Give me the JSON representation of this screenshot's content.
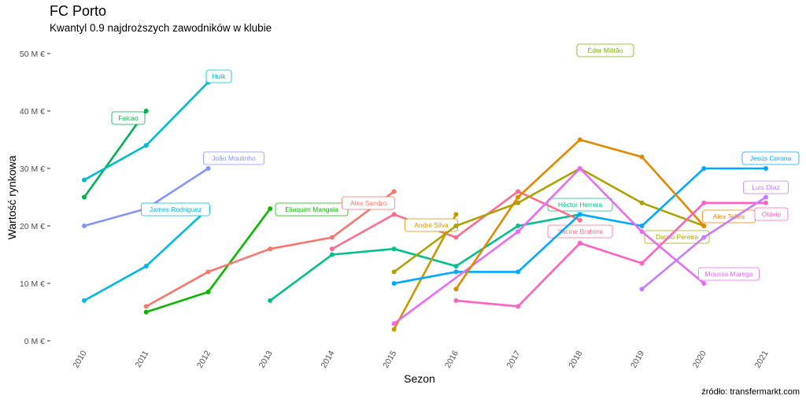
{
  "title": "FC Porto",
  "subtitle": "Kwantyl 0.9 najdroższych zawodników w klubie",
  "source": "źródło: transfermarkt.com",
  "chart_data": {
    "type": "line",
    "title": "FC Porto",
    "subtitle": "Kwantyl 0.9 najdroższych zawodników w klubie",
    "xlabel": "Sezon",
    "ylabel": "Wartość rynkowa",
    "x_ticks": [
      "2010",
      "2011",
      "2012",
      "2013",
      "2014",
      "2015",
      "2016",
      "2017",
      "2018",
      "2019",
      "2020",
      "2021"
    ],
    "y_ticks": [
      "0 M €",
      "10 M €",
      "20 M €",
      "30 M €",
      "40 M €",
      "50 M €"
    ],
    "y_tick_values": [
      0,
      10,
      20,
      30,
      40,
      50
    ],
    "xlim": [
      2010,
      2021
    ],
    "ylim": [
      0,
      50
    ],
    "grid": false,
    "legend": "none (direct labels)",
    "series": [
      {
        "name": "Falcao",
        "color": "#00B050",
        "points": [
          [
            2010,
            25
          ],
          [
            2011,
            40
          ]
        ]
      },
      {
        "name": "Hulk",
        "color": "#00BCC8",
        "points": [
          [
            2010,
            28
          ],
          [
            2011,
            34
          ],
          [
            2012,
            45
          ]
        ]
      },
      {
        "name": "João Moutinho",
        "color": "#8494FF",
        "points": [
          [
            2010,
            20
          ],
          [
            2011,
            23
          ],
          [
            2012,
            30
          ]
        ]
      },
      {
        "name": "James Rodriguez",
        "color": "#00B8E5",
        "points": [
          [
            2010,
            7
          ],
          [
            2011,
            13
          ],
          [
            2012,
            23
          ]
        ]
      },
      {
        "name": "Eliaquim Mangala",
        "color": "#0CB702",
        "points": [
          [
            2011,
            5
          ],
          [
            2012,
            8.5
          ],
          [
            2013,
            23
          ]
        ]
      },
      {
        "name": "Alex Sandro",
        "color": "#F8766D",
        "points": [
          [
            2011,
            6
          ],
          [
            2012,
            12
          ],
          [
            2013,
            16
          ],
          [
            2014,
            18
          ],
          [
            2015,
            26
          ]
        ]
      },
      {
        "name": "Héctor Herrera",
        "color": "#00C08B",
        "points": [
          [
            2013,
            7
          ],
          [
            2014,
            15
          ],
          [
            2015,
            16
          ],
          [
            2016,
            13
          ],
          [
            2017,
            20
          ],
          [
            2018,
            22
          ]
        ]
      },
      {
        "name": "Yacine Brahimi",
        "color": "#FF6C91",
        "points": [
          [
            2014,
            16
          ],
          [
            2015,
            22
          ],
          [
            2016,
            18
          ],
          [
            2017,
            26
          ],
          [
            2018,
            21
          ]
        ]
      },
      {
        "name": "André Silva",
        "color": "#CD9600",
        "points": [
          [
            2015,
            2
          ],
          [
            2016,
            22
          ]
        ]
      },
      {
        "name": "Danilo Pereira",
        "color": "#ABA300",
        "points": [
          [
            2015,
            12
          ],
          [
            2016,
            20
          ],
          [
            2017,
            24
          ],
          [
            2018,
            30
          ],
          [
            2019,
            24
          ],
          [
            2020,
            20
          ]
        ]
      },
      {
        "name": "Jesús Corona",
        "color": "#00A9FF",
        "points": [
          [
            2015,
            10
          ],
          [
            2016,
            12
          ],
          [
            2017,
            12
          ],
          [
            2018,
            22
          ],
          [
            2019,
            20
          ],
          [
            2020,
            30
          ],
          [
            2021,
            30
          ]
        ]
      },
      {
        "name": "Moussa Marega",
        "color": "#E76BF3",
        "points": [
          [
            2015,
            3
          ],
          [
            2017,
            19
          ],
          [
            2018,
            30
          ],
          [
            2019,
            19
          ],
          [
            2020,
            10
          ]
        ]
      },
      {
        "name": "Alex Telles",
        "color": "#E38900",
        "points": [
          [
            2016,
            9
          ],
          [
            2017,
            25
          ],
          [
            2018,
            35
          ],
          [
            2019,
            32
          ],
          [
            2020,
            20
          ]
        ]
      },
      {
        "name": "Otávio",
        "color": "#FF61C3",
        "points": [
          [
            2016,
            7
          ],
          [
            2017,
            6
          ],
          [
            2018,
            17
          ],
          [
            2019,
            13.5
          ],
          [
            2020,
            24
          ],
          [
            2021,
            24
          ]
        ]
      },
      {
        "name": "Luis Díaz",
        "color": "#C77CFF",
        "points": [
          [
            2019,
            9
          ],
          [
            2020,
            18
          ],
          [
            2021,
            25
          ]
        ]
      },
      {
        "name": "Éder Militão",
        "color": "#7CAE00",
        "points": [
          [
            2018,
            50
          ]
        ]
      }
    ]
  }
}
